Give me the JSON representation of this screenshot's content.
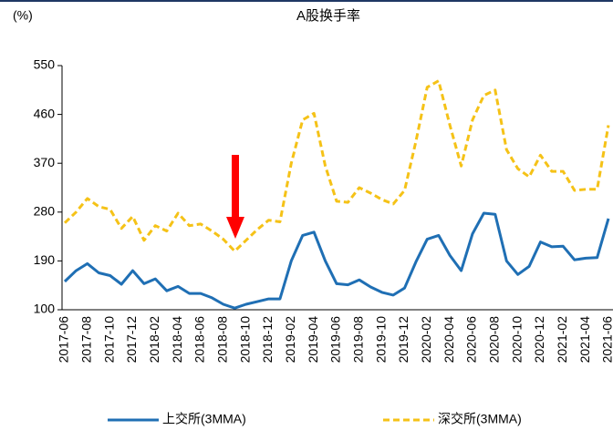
{
  "chart_data": {
    "type": "line",
    "title": "A股换手率",
    "y_label": "(%)",
    "categories": [
      "2017-06",
      null,
      "2017-08",
      null,
      "2017-10",
      null,
      "2017-12",
      null,
      "2018-02",
      null,
      "2018-04",
      null,
      "2018-06",
      null,
      "2018-08",
      null,
      "2018-10",
      null,
      "2018-12",
      null,
      "2019-02",
      null,
      "2019-04",
      null,
      "2019-06",
      null,
      "2019-08",
      null,
      "2019-10",
      null,
      "2019-12",
      null,
      "2020-02",
      null,
      "2020-04",
      null,
      "2020-06",
      null,
      "2020-08",
      null,
      "2020-10",
      null,
      "2020-12",
      null,
      "2021-02",
      null,
      "2021-04",
      null,
      "2021-06"
    ],
    "series": [
      {
        "name": "上交所(3MMA)",
        "color": "#1f6fb4",
        "dash": false,
        "values": [
          152,
          172,
          185,
          168,
          163,
          147,
          172,
          148,
          157,
          135,
          143,
          130,
          130,
          122,
          110,
          103,
          110,
          115,
          120,
          120,
          190,
          237,
          243,
          190,
          148,
          146,
          155,
          142,
          132,
          127,
          140,
          188,
          230,
          237,
          200,
          172,
          240,
          278,
          276,
          190,
          165,
          180,
          225,
          216,
          217,
          192,
          195,
          196,
          268
        ]
      },
      {
        "name": "深交所(3MMA)",
        "color": "#f5c217",
        "dash": true,
        "values": [
          260,
          280,
          305,
          290,
          285,
          250,
          272,
          228,
          255,
          245,
          278,
          255,
          258,
          245,
          230,
          208,
          228,
          248,
          265,
          262,
          370,
          450,
          462,
          365,
          300,
          298,
          325,
          315,
          303,
          295,
          320,
          410,
          510,
          522,
          440,
          365,
          450,
          495,
          505,
          395,
          360,
          345,
          385,
          355,
          355,
          320,
          322,
          322,
          440
        ]
      }
    ],
    "ylim": [
      100,
      550
    ],
    "yticks": [
      100,
      190,
      280,
      370,
      460,
      550
    ],
    "grid": false,
    "legend": "bottom"
  }
}
